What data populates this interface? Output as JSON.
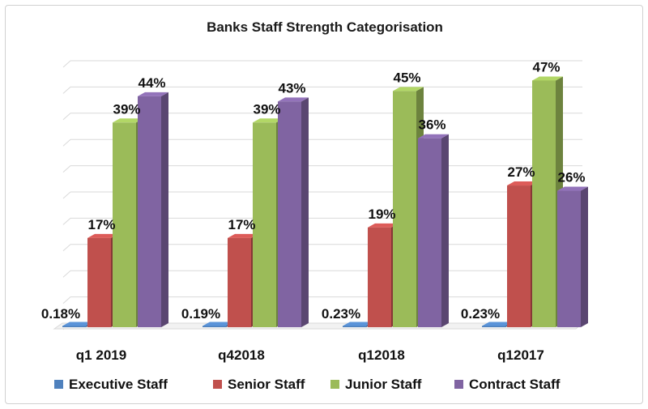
{
  "chart_data": {
    "type": "bar",
    "title": "Banks Staff Strength Categorisation",
    "categories": [
      "q1 2019",
      "q42018",
      "q12018",
      "q12017"
    ],
    "series": [
      {
        "name": "Executive Staff",
        "color": "#4f81bd",
        "values": [
          0.18,
          0.19,
          0.23,
          0.23
        ],
        "labels": [
          "0.18%",
          "0.19%",
          "0.23%",
          "0.23%"
        ]
      },
      {
        "name": "Senior Staff",
        "color": "#c0504d",
        "values": [
          17,
          17,
          19,
          27
        ],
        "labels": [
          "17%",
          "17%",
          "19%",
          "27%"
        ]
      },
      {
        "name": "Junior Staff",
        "color": "#9bbb59",
        "values": [
          39,
          39,
          45,
          47
        ],
        "labels": [
          "39%",
          "39%",
          "45%",
          "47%"
        ]
      },
      {
        "name": "Contract Staff",
        "color": "#8064a2",
        "values": [
          44,
          43,
          36,
          26
        ],
        "labels": [
          "44%",
          "43%",
          "36%",
          "26%"
        ]
      }
    ],
    "ylim": [
      0,
      50
    ],
    "grid": true,
    "legend": "bottom",
    "style": "3d-clustered-column"
  }
}
